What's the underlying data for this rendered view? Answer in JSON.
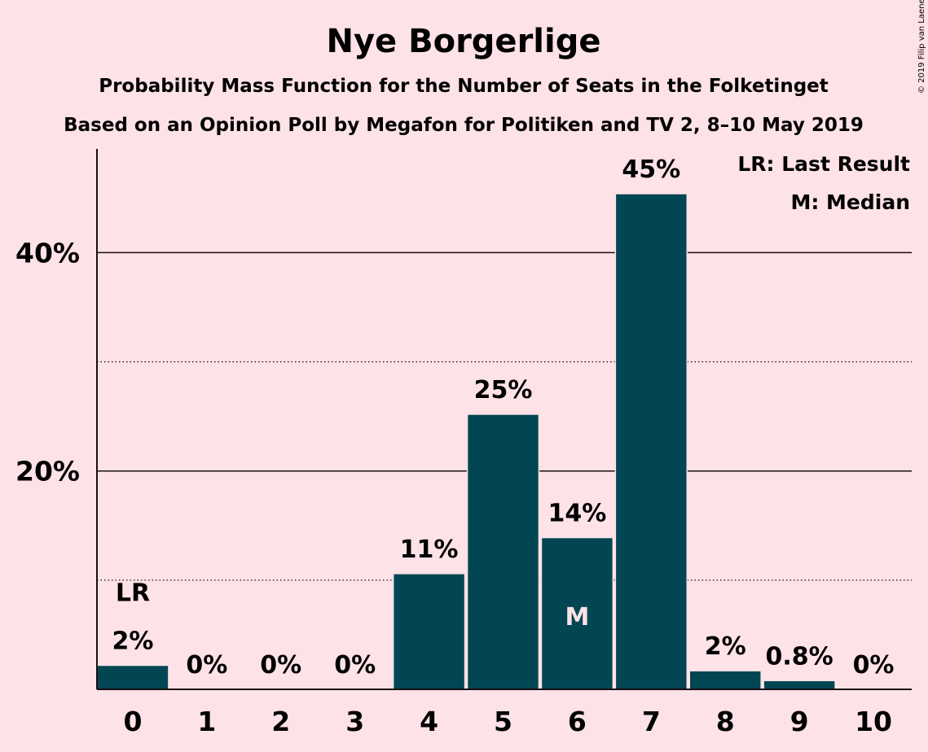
{
  "chart_data": {
    "type": "bar",
    "title": "Nye Borgerlige",
    "subtitle": "Probability Mass Function for the Number of Seats in the Folketinget",
    "subtitle2": "Based on an Opinion Poll by Megafon for Politiken and TV 2, 8–10 May 2019",
    "categories": [
      "0",
      "1",
      "2",
      "3",
      "4",
      "5",
      "6",
      "7",
      "8",
      "9",
      "10"
    ],
    "values": [
      2.2,
      0,
      0,
      0,
      10.6,
      25.2,
      13.9,
      45.4,
      1.7,
      0.8,
      0
    ],
    "value_labels": [
      "2%",
      "0%",
      "0%",
      "0%",
      "11%",
      "25%",
      "14%",
      "45%",
      "2%",
      "0.8%",
      "0%"
    ],
    "ylim": [
      0,
      49.5
    ],
    "yticks": [
      20,
      40
    ],
    "ytick_labels": [
      "20%",
      "40%"
    ],
    "minor_grid": [
      10,
      30
    ],
    "last_result_index": 0,
    "median_index": 6,
    "last_result_marker": "LR",
    "median_marker": "M",
    "legend": [
      "LR: Last Result",
      "M: Median"
    ],
    "copyright": "© 2019 Filip van Laenen",
    "bar_color": "#034653",
    "background": "#FDE2E7"
  }
}
